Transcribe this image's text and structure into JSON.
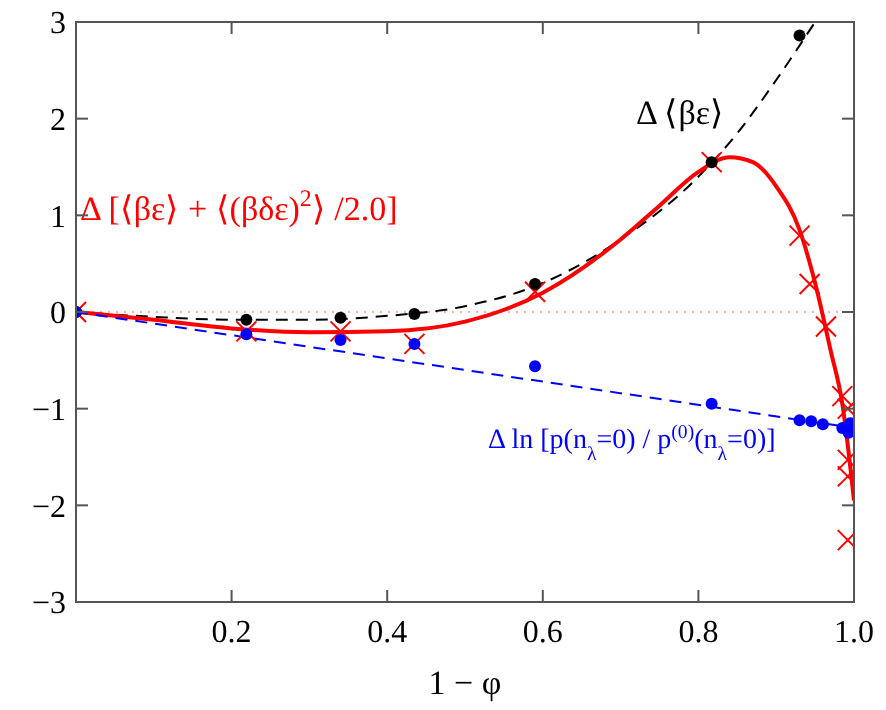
{
  "chart_data": {
    "type": "line",
    "xlabel": "1 − φ",
    "xlim": [
      0,
      1
    ],
    "ylim": [
      -3,
      3
    ],
    "xticks": [
      0.2,
      0.4,
      0.6,
      0.8,
      {
        "value": 1,
        "label": "1.0"
      }
    ],
    "yticks": [
      -3,
      -2,
      -1,
      0,
      1,
      2,
      3
    ],
    "grid": false,
    "ref_lines": [
      {
        "axis": "y",
        "value": 0,
        "color": "#ffaaaa",
        "line_style": "dotted"
      }
    ],
    "series": [
      {
        "name": "Δ ⟨βε⟩",
        "color": "#000000",
        "line_style": "dashed",
        "marker": "none",
        "x": [
          0,
          0.1,
          0.2,
          0.3,
          0.4,
          0.5,
          0.6,
          0.7,
          0.8,
          0.85,
          0.9,
          0.95
        ],
        "values": [
          0,
          -0.05,
          -0.08,
          -0.08,
          -0.04,
          0.06,
          0.3,
          0.75,
          1.4,
          1.85,
          2.4,
          3.0
        ]
      },
      {
        "type": "scatter",
        "color": "#000000",
        "marker": "circle",
        "x": [
          0,
          0.219,
          0.34,
          0.435,
          0.59,
          0.817,
          0.93
        ],
        "values": [
          0,
          -0.08,
          -0.06,
          -0.02,
          0.29,
          1.55,
          2.86
        ]
      },
      {
        "name": "Δ [⟨βε⟩ + ⟨(βδε)$^{2}$⟩ /2.0]",
        "color": "#ff0000",
        "line_style": "solid",
        "marker": "none",
        "x": [
          0,
          0.1,
          0.2,
          0.3,
          0.4,
          0.5,
          0.6,
          0.7,
          0.75,
          0.8,
          0.84,
          0.87,
          0.9,
          0.93,
          0.95,
          0.97,
          0.985,
          1.0
        ],
        "values": [
          0,
          -0.08,
          -0.17,
          -0.21,
          -0.2,
          -0.1,
          0.2,
          0.75,
          1.1,
          1.45,
          1.6,
          1.55,
          1.3,
          0.85,
          0.3,
          -0.4,
          -0.95,
          -1.95
        ]
      },
      {
        "type": "scatter",
        "color": "#ff0000",
        "marker": "cross",
        "x": [
          0,
          0.219,
          0.34,
          0.435,
          0.59,
          0.817,
          0.93,
          0.943,
          0.964,
          0.985,
          0.992,
          0.992,
          0.992,
          0.992
        ],
        "values": [
          0,
          -0.2,
          -0.2,
          -0.33,
          0.21,
          1.55,
          0.79,
          0.29,
          -0.15,
          -0.87,
          -1.0,
          -1.53,
          -1.7,
          -2.36
        ]
      },
      {
        "name": "Δ ln [p(n$_{λ}$=0) / p$^{(0)}$(n$_{λ}$=0)]",
        "color": "#0000ff",
        "line_style": "dashed",
        "marker": "none",
        "x": [
          0,
          1
        ],
        "values": [
          0,
          -1.2
        ]
      },
      {
        "type": "scatter",
        "color": "#0000ff",
        "marker": "circle",
        "x": [
          0,
          0.219,
          0.34,
          0.435,
          0.59,
          0.817,
          0.93,
          0.945,
          0.96,
          0.985,
          0.995,
          0.993
        ],
        "values": [
          0,
          -0.23,
          -0.29,
          -0.33,
          -0.56,
          -0.95,
          -1.12,
          -1.13,
          -1.16,
          -1.2,
          -1.15,
          -1.25
        ]
      }
    ]
  }
}
